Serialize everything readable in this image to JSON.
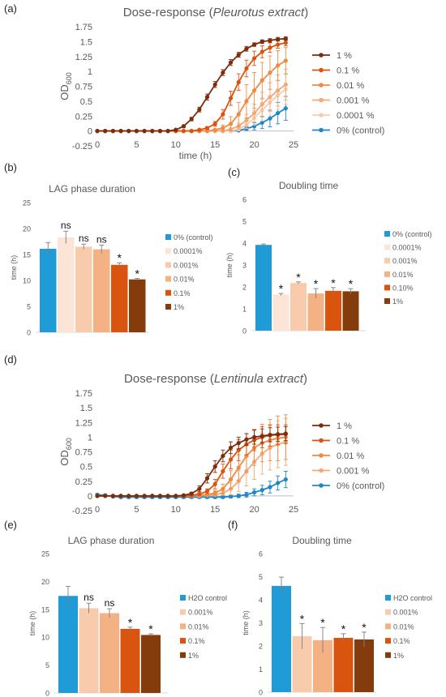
{
  "panels": {
    "a": "(a)",
    "b": "(b)",
    "c": "(c)",
    "d": "(d)",
    "e": "(e)",
    "f": "(f)"
  },
  "chart_data": [
    {
      "id": "a",
      "type": "line",
      "title_prefix": "Dose-response (",
      "title_italic": "Pleurotus extract",
      "title_suffix": ")",
      "xlabel": "time (h)",
      "ylabel_main": "OD",
      "ylabel_sub": "600",
      "xlim": [
        0,
        25
      ],
      "ylim": [
        -0.25,
        1.75
      ],
      "xticks": [
        0,
        5,
        10,
        15,
        20,
        25
      ],
      "yticks": [
        -0.25,
        0,
        0.25,
        0.5,
        0.75,
        1,
        1.25,
        1.5,
        1.75
      ],
      "ytick_labels": [
        "-0.25",
        "0",
        "0.25",
        "0.5",
        "0.75",
        "1",
        "1.25",
        "1.5",
        "1.75"
      ],
      "x": [
        0,
        1,
        2,
        3,
        4,
        5,
        6,
        7,
        8,
        9,
        10,
        11,
        12,
        13,
        14,
        15,
        16,
        17,
        18,
        19,
        20,
        21,
        22,
        23,
        24
      ],
      "legend_position": "right",
      "series": [
        {
          "name": "1 %",
          "color": "#7b2d0c",
          "values": [
            0,
            0,
            0,
            0,
            0,
            0,
            0,
            0,
            0,
            0,
            0.02,
            0.08,
            0.2,
            0.36,
            0.57,
            0.78,
            0.98,
            1.15,
            1.28,
            1.38,
            1.45,
            1.5,
            1.52,
            1.54,
            1.55
          ],
          "errors": [
            0,
            0,
            0,
            0,
            0,
            0,
            0,
            0,
            0,
            0,
            0.01,
            0.02,
            0.03,
            0.04,
            0.05,
            0.05,
            0.05,
            0.05,
            0.04,
            0.04,
            0.03,
            0.03,
            0.03,
            0.03,
            0.03
          ]
        },
        {
          "name": "0.1 %",
          "color": "#d9540f",
          "values": [
            0,
            0,
            0,
            0,
            0,
            0,
            0,
            0,
            0,
            0,
            0,
            0,
            0,
            0.02,
            0.05,
            0.12,
            0.28,
            0.55,
            0.82,
            1.05,
            1.22,
            1.33,
            1.4,
            1.45,
            1.48
          ],
          "errors": [
            0,
            0,
            0,
            0,
            0,
            0,
            0,
            0,
            0,
            0,
            0,
            0,
            0,
            0.01,
            0.02,
            0.04,
            0.08,
            0.12,
            0.14,
            0.14,
            0.12,
            0.1,
            0.08,
            0.06,
            0.05
          ]
        },
        {
          "name": "0.01 %",
          "color": "#ef8a43",
          "values": [
            0,
            0,
            0,
            0,
            0,
            0,
            0,
            0,
            0,
            0,
            0,
            0,
            0,
            0,
            0,
            0.02,
            0.05,
            0.12,
            0.28,
            0.5,
            0.68,
            0.85,
            0.98,
            1.1,
            1.18
          ],
          "errors": [
            0,
            0,
            0,
            0,
            0,
            0,
            0,
            0,
            0,
            0,
            0,
            0,
            0,
            0,
            0,
            0.01,
            0.05,
            0.12,
            0.2,
            0.28,
            0.3,
            0.3,
            0.28,
            0.25,
            0.22
          ]
        },
        {
          "name": "0.001 %",
          "color": "#f5a877",
          "values": [
            0,
            0,
            0,
            0,
            0,
            0,
            0,
            0,
            0,
            0,
            0,
            0,
            0,
            0,
            0,
            0,
            0,
            0.03,
            0.08,
            0.18,
            0.3,
            0.45,
            0.57,
            0.68,
            0.78
          ],
          "errors": [
            0,
            0,
            0,
            0,
            0,
            0,
            0,
            0,
            0,
            0,
            0,
            0,
            0,
            0,
            0,
            0,
            0,
            0.02,
            0.05,
            0.1,
            0.15,
            0.2,
            0.24,
            0.26,
            0.26
          ]
        },
        {
          "name": "0.0001 %",
          "color": "#f8ccb0",
          "values": [
            0,
            0,
            0,
            0,
            0,
            0,
            0,
            0,
            0,
            0,
            0,
            0,
            0,
            0,
            0,
            0,
            0,
            0,
            0.03,
            0.1,
            0.22,
            0.35,
            0.48,
            0.6,
            0.7
          ],
          "errors": [
            0,
            0,
            0,
            0,
            0,
            0,
            0,
            0,
            0,
            0,
            0,
            0,
            0,
            0,
            0,
            0,
            0,
            0,
            0.02,
            0.06,
            0.12,
            0.18,
            0.22,
            0.24,
            0.25
          ]
        },
        {
          "name": "0% (control)",
          "color": "#1f86c9",
          "values": [
            0,
            0,
            0,
            0,
            0,
            0,
            0,
            0,
            0,
            0,
            0,
            0,
            0,
            0,
            0,
            0,
            0,
            0,
            0.01,
            0.04,
            0.08,
            0.14,
            0.21,
            0.3,
            0.38
          ],
          "errors": [
            0,
            0,
            0,
            0,
            0,
            0,
            0,
            0,
            0,
            0,
            0,
            0,
            0,
            0,
            0,
            0,
            0,
            0,
            0.01,
            0.03,
            0.06,
            0.1,
            0.14,
            0.18,
            0.2
          ]
        }
      ]
    },
    {
      "id": "b",
      "type": "bar",
      "title": "LAG phase duration",
      "ylabel": "time (h)",
      "ylim": [
        0,
        25
      ],
      "yticks": [
        0,
        5,
        10,
        15,
        20,
        25
      ],
      "legend_position": "right",
      "categories": [
        "0% (control)",
        "0.0001%",
        "0.001%",
        "0.01%",
        "0.1%",
        "1%"
      ],
      "values": [
        16.1,
        18.3,
        16.5,
        16.0,
        13.0,
        10.2
      ],
      "errors": [
        1.2,
        1.2,
        0.5,
        0.8,
        0.4,
        0.2
      ],
      "annotations": [
        "",
        "ns",
        "ns",
        "ns",
        "*",
        "*"
      ],
      "colors": [
        "#1f9bd7",
        "#fce4d6",
        "#f8cbad",
        "#f4b183",
        "#d9540f",
        "#843c0c"
      ]
    },
    {
      "id": "c",
      "type": "bar",
      "title": "Doubling time",
      "ylabel": "time (h)",
      "ylim": [
        0,
        6
      ],
      "yticks": [
        0,
        1,
        2,
        3,
        4,
        5,
        6
      ],
      "legend_position": "right",
      "categories": [
        "0% (control)",
        "0.0001%",
        "0.001%",
        "0.01%",
        "0.10%",
        "1%"
      ],
      "values": [
        3.92,
        1.65,
        2.18,
        1.7,
        1.82,
        1.8
      ],
      "errors": [
        0.04,
        0.05,
        0.05,
        0.22,
        0.15,
        0.12
      ],
      "annotations": [
        "",
        "*",
        "*",
        "*",
        "*",
        "*"
      ],
      "colors": [
        "#1f9bd7",
        "#fce4d6",
        "#f8cbad",
        "#f4b183",
        "#d9540f",
        "#843c0c"
      ]
    },
    {
      "id": "d",
      "type": "line",
      "title_prefix": "Dose-response (",
      "title_italic": "Lentinula extract",
      "title_suffix": ")",
      "xlabel": "",
      "ylabel_main": "OD",
      "ylabel_sub": "600",
      "xlim": [
        0,
        25
      ],
      "ylim": [
        -0.25,
        1.75
      ],
      "xticks": [
        0,
        5,
        10,
        15,
        20,
        25
      ],
      "yticks": [
        -0.25,
        0,
        0.25,
        0.5,
        0.75,
        1,
        1.25,
        1.5,
        1.75
      ],
      "ytick_labels": [
        "-0.25",
        "0",
        "0.25",
        "0.5",
        "0.75",
        "1",
        "1.25",
        "1.5",
        "1.75"
      ],
      "x": [
        0,
        1,
        2,
        3,
        4,
        5,
        6,
        7,
        8,
        9,
        10,
        11,
        12,
        13,
        14,
        15,
        16,
        17,
        18,
        19,
        20,
        21,
        22,
        23,
        24
      ],
      "legend_position": "right",
      "series": [
        {
          "name": "1 %",
          "color": "#7b2d0c",
          "values": [
            0,
            0,
            0,
            0,
            0,
            0,
            0,
            0,
            0,
            0,
            0,
            0.01,
            0.04,
            0.12,
            0.3,
            0.5,
            0.68,
            0.82,
            0.9,
            0.96,
            1.0,
            1.02,
            1.04,
            1.05,
            1.06
          ],
          "errors": [
            0,
            0,
            0,
            0,
            0,
            0,
            0,
            0,
            0,
            0,
            0,
            0.01,
            0.02,
            0.05,
            0.08,
            0.1,
            0.1,
            0.1,
            0.1,
            0.1,
            0.12,
            0.12,
            0.12,
            0.12,
            0.12
          ]
        },
        {
          "name": "0.1 %",
          "color": "#d9540f",
          "values": [
            0,
            0,
            0,
            0,
            0,
            0,
            0,
            0,
            0,
            0,
            0,
            0,
            0.01,
            0.03,
            0.08,
            0.2,
            0.42,
            0.62,
            0.78,
            0.88,
            0.95,
            1.0,
            1.03,
            1.04,
            1.05
          ],
          "errors": [
            0,
            0,
            0,
            0,
            0,
            0,
            0,
            0,
            0,
            0,
            0,
            0,
            0.01,
            0.02,
            0.04,
            0.08,
            0.12,
            0.16,
            0.18,
            0.18,
            0.18,
            0.18,
            0.18,
            0.17,
            0.16
          ]
        },
        {
          "name": "0.01 %",
          "color": "#ef8a43",
          "values": [
            0,
            0,
            0,
            0,
            0,
            0,
            0,
            0,
            0,
            0,
            0,
            0,
            0,
            0.01,
            0.02,
            0.05,
            0.12,
            0.28,
            0.48,
            0.68,
            0.82,
            0.9,
            0.95,
            0.98,
            1.0
          ],
          "errors": [
            0,
            0,
            0,
            0,
            0,
            0,
            0,
            0,
            0,
            0,
            0,
            0,
            0,
            0.01,
            0.02,
            0.04,
            0.08,
            0.15,
            0.22,
            0.28,
            0.3,
            0.32,
            0.35,
            0.38,
            0.38
          ]
        },
        {
          "name": "0.001 %",
          "color": "#f5a877",
          "values": [
            0,
            0,
            0,
            0,
            0,
            0,
            0,
            0,
            0,
            0,
            0,
            0,
            0,
            0,
            0.01,
            0.02,
            0.05,
            0.12,
            0.25,
            0.42,
            0.58,
            0.72,
            0.82,
            0.88,
            0.92
          ],
          "errors": [
            0,
            0,
            0,
            0,
            0,
            0,
            0,
            0,
            0,
            0,
            0,
            0,
            0,
            0,
            0.01,
            0.02,
            0.04,
            0.1,
            0.18,
            0.25,
            0.3,
            0.35,
            0.38,
            0.4,
            0.4
          ]
        },
        {
          "name": "0% (control)",
          "color": "#1f86c9",
          "values": [
            0.02,
            0.01,
            -0.01,
            -0.02,
            -0.02,
            -0.02,
            -0.02,
            -0.02,
            -0.02,
            -0.02,
            -0.02,
            -0.02,
            -0.02,
            -0.02,
            -0.02,
            -0.02,
            -0.02,
            -0.01,
            0.0,
            0.02,
            0.06,
            0.1,
            0.15,
            0.22,
            0.28
          ],
          "errors": [
            0.02,
            0.02,
            0.02,
            0.02,
            0.02,
            0.02,
            0.02,
            0.02,
            0.02,
            0.02,
            0.02,
            0.02,
            0.02,
            0.02,
            0.02,
            0.02,
            0.02,
            0.02,
            0.03,
            0.04,
            0.06,
            0.08,
            0.1,
            0.12,
            0.14
          ]
        }
      ]
    },
    {
      "id": "e",
      "type": "bar",
      "title": "LAG phase duration",
      "ylabel": "time (h)",
      "ylim": [
        0,
        25
      ],
      "yticks": [
        0,
        5,
        10,
        15,
        20,
        25
      ],
      "legend_position": "right",
      "categories": [
        "H2O control",
        "0.001%",
        "0.01%",
        "0.1%",
        "1%"
      ],
      "values": [
        17.4,
        15.2,
        14.3,
        11.5,
        10.4
      ],
      "errors": [
        1.7,
        0.9,
        0.8,
        0.3,
        0.2
      ],
      "annotations": [
        "",
        "ns",
        "ns",
        "*",
        "*"
      ],
      "colors": [
        "#1f9bd7",
        "#f8cbad",
        "#f4b183",
        "#d9540f",
        "#843c0c"
      ]
    },
    {
      "id": "f",
      "type": "bar",
      "title": "Doubling time",
      "ylabel": "time (h)",
      "ylim": [
        0,
        6
      ],
      "yticks": [
        0,
        1,
        2,
        3,
        4,
        5,
        6
      ],
      "legend_position": "right",
      "categories": [
        "H2O control",
        "0.001%",
        "0.01%",
        "0.1%",
        "1%"
      ],
      "values": [
        4.6,
        2.42,
        2.25,
        2.35,
        2.28
      ],
      "errors": [
        0.38,
        0.55,
        0.55,
        0.18,
        0.32
      ],
      "annotations": [
        "",
        "*",
        "*",
        "*",
        "*"
      ],
      "colors": [
        "#1f9bd7",
        "#f8cbad",
        "#f4b183",
        "#d9540f",
        "#843c0c"
      ]
    }
  ]
}
